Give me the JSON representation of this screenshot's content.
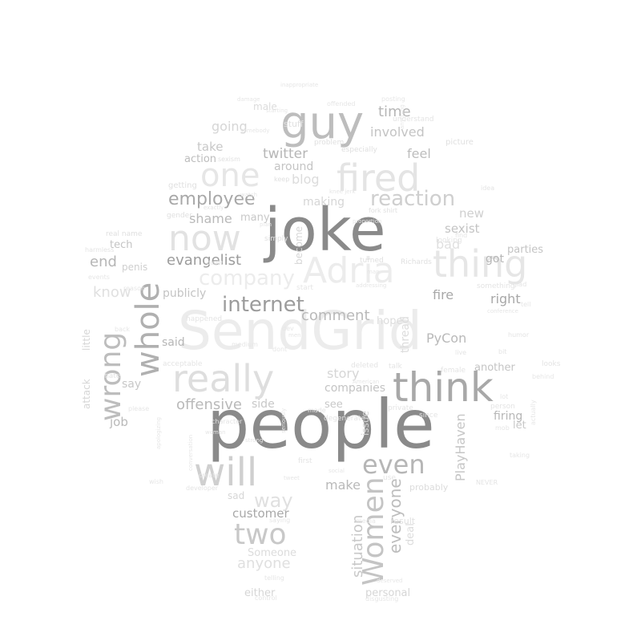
{
  "word_cloud": {
    "words": [
      {
        "text": "people",
        "shade": "#8a8a8a"
      },
      {
        "text": "joke",
        "shade": "#8a8a8a"
      },
      {
        "text": "SendGrid",
        "shade": "#ececec"
      },
      {
        "text": "think",
        "shade": "#a8a8a8"
      },
      {
        "text": "guy",
        "shade": "#bdbdbd"
      },
      {
        "text": "fired",
        "shade": "#e4e4e4"
      },
      {
        "text": "one",
        "shade": "#e6e6e6"
      },
      {
        "text": "Adria",
        "shade": "#ececec"
      },
      {
        "text": "thing",
        "shade": "#e6e6e6"
      },
      {
        "text": "really",
        "shade": "#dedede"
      },
      {
        "text": "will",
        "shade": "#cfcfcf"
      },
      {
        "text": "now",
        "shade": "#e2e2e2"
      },
      {
        "text": "Women",
        "shade": "#c4c4c4"
      },
      {
        "text": "whole",
        "shade": "#b0b0b0"
      },
      {
        "text": "wrong",
        "shade": "#bdbdbd"
      },
      {
        "text": "two",
        "shade": "#c8c8c8"
      },
      {
        "text": "even",
        "shade": "#b6b6b6"
      },
      {
        "text": "internet",
        "shade": "#9c9c9c"
      },
      {
        "text": "reaction",
        "shade": "#cfcfcf"
      },
      {
        "text": "employee",
        "shade": "#a8a8a8"
      },
      {
        "text": "company",
        "shade": "#ececec"
      },
      {
        "text": "way",
        "shade": "#e0e0e0"
      },
      {
        "text": "evangelist",
        "shade": "#9c9c9c"
      },
      {
        "text": "comment",
        "shade": "#b9b9b9"
      },
      {
        "text": "everyone",
        "shade": "#bdbdbd"
      },
      {
        "text": "situation",
        "shade": "#c8c8c8"
      },
      {
        "text": "PlayHaven",
        "shade": "#c6c6c6"
      },
      {
        "text": "PyCon",
        "shade": "#b9b9b9"
      },
      {
        "text": "offensive",
        "shade": "#b9b9b9"
      },
      {
        "text": "customer",
        "shade": "#a8a8a8"
      },
      {
        "text": "anyone",
        "shade": "#e0e0e0"
      },
      {
        "text": "time",
        "shade": "#b6b6b6"
      },
      {
        "text": "twitter",
        "shade": "#b6b6b6"
      },
      {
        "text": "involved",
        "shade": "#c4c4c4"
      },
      {
        "text": "going",
        "shade": "#d6d6d6"
      },
      {
        "text": "shame",
        "shade": "#b9b9b9"
      },
      {
        "text": "end",
        "shade": "#b6b6b6"
      },
      {
        "text": "know",
        "shade": "#e0e0e0"
      },
      {
        "text": "story",
        "shade": "#d6d6d6"
      },
      {
        "text": "job",
        "shade": "#b9b9b9"
      },
      {
        "text": "make",
        "shade": "#b9b9b9"
      },
      {
        "text": "fire",
        "shade": "#a8a8a8"
      },
      {
        "text": "right",
        "shade": "#a8a8a8"
      },
      {
        "text": "got",
        "shade": "#b6b6b6"
      },
      {
        "text": "firing",
        "shade": "#b6b6b6"
      },
      {
        "text": "parties",
        "shade": "#c4c4c4"
      },
      {
        "text": "feel",
        "shade": "#bdbdbd"
      },
      {
        "text": "take",
        "shade": "#c8c8c8"
      },
      {
        "text": "blog",
        "shade": "#dcdcdc"
      },
      {
        "text": "around",
        "shade": "#c4c4c4"
      },
      {
        "text": "action",
        "shade": "#bdbdbd"
      },
      {
        "text": "making",
        "shade": "#d6d6d6"
      },
      {
        "text": "new",
        "shade": "#cfcfcf"
      },
      {
        "text": "sexist",
        "shade": "#c4c4c4"
      },
      {
        "text": "bad",
        "shade": "#e0e0e0"
      },
      {
        "text": "publicly",
        "shade": "#c4c4c4"
      },
      {
        "text": "said",
        "shade": "#b6b6b6"
      },
      {
        "text": "say",
        "shade": "#c8c8c8"
      },
      {
        "text": "companies",
        "shade": "#c4c4c4"
      },
      {
        "text": "side",
        "shade": "#c8c8c8"
      },
      {
        "text": "another",
        "shade": "#c4c4c4"
      },
      {
        "text": "let",
        "shade": "#c8c8c8"
      },
      {
        "text": "many",
        "shade": "#c8c8c8"
      },
      {
        "text": "tech",
        "shade": "#c4c4c4"
      },
      {
        "text": "penis",
        "shade": "#cfcfcf"
      },
      {
        "text": "Someone",
        "shade": "#dcdcdc"
      },
      {
        "text": "either",
        "shade": "#d6d6d6"
      },
      {
        "text": "personal",
        "shade": "#d6d6d6"
      },
      {
        "text": "see",
        "shade": "#c8c8c8"
      },
      {
        "text": "hope",
        "shade": "#dcdcdc"
      },
      {
        "text": "thread",
        "shade": "#dcdcdc"
      },
      {
        "text": "deal",
        "shade": "#dcdcdc"
      },
      {
        "text": "attack",
        "shade": "#d6d6d6"
      },
      {
        "text": "little",
        "shade": "#d6d6d6"
      },
      {
        "text": "become",
        "shade": "#d6d6d6"
      },
      {
        "text": "issue",
        "shade": "#d6d6d6"
      },
      {
        "text": "sad",
        "shade": "#d6d6d6"
      },
      {
        "text": "probably",
        "shade": "#dcdcdc"
      },
      {
        "text": "result",
        "shade": "#e0e0e0"
      },
      {
        "text": "male",
        "shade": "#dcdcdc"
      },
      {
        "text": "stuff",
        "shade": "#e0e0e0"
      },
      {
        "text": "problem",
        "shade": "#e0e0e0"
      },
      {
        "text": "especially",
        "shade": "#e0e0e0"
      },
      {
        "text": "picture",
        "shade": "#e0e0e0"
      },
      {
        "text": "understand",
        "shade": "#e4e4e4"
      },
      {
        "text": "sexism",
        "shade": "#e0e0e0"
      },
      {
        "text": "getting",
        "shade": "#e0e0e0"
      },
      {
        "text": "gender",
        "shade": "#e0e0e0"
      },
      {
        "text": "exactly",
        "shade": "#e4e4e4"
      },
      {
        "text": "real name",
        "shade": "#e0e0e0"
      },
      {
        "text": "harmless",
        "shade": "#e4e4e4"
      },
      {
        "text": "simply",
        "shade": "#e0e0e0"
      },
      {
        "text": "keep",
        "shade": "#e0e0e0"
      },
      {
        "text": "fork shirt",
        "shade": "#e0e0e0"
      },
      {
        "text": "turned",
        "shade": "#e0e0e0"
      },
      {
        "text": "Richards",
        "shade": "#e0e0e0"
      },
      {
        "text": "looking",
        "shade": "#e4e4e4"
      },
      {
        "text": "find",
        "shade": "#e4e4e4"
      },
      {
        "text": "idea",
        "shade": "#e4e4e4"
      },
      {
        "text": "something",
        "shade": "#e4e4e4"
      },
      {
        "text": "glad",
        "shade": "#e4e4e4"
      },
      {
        "text": "tell",
        "shade": "#e6e6e6"
      },
      {
        "text": "humor",
        "shade": "#e4e4e4"
      },
      {
        "text": "live",
        "shade": "#e4e4e4"
      },
      {
        "text": "bit",
        "shade": "#e4e4e4"
      },
      {
        "text": "looks",
        "shade": "#e4e4e4"
      },
      {
        "text": "behind",
        "shade": "#e6e6e6"
      },
      {
        "text": "female",
        "shade": "#e4e4e4"
      },
      {
        "text": "talk",
        "shade": "#e4e4e4"
      },
      {
        "text": "deleted",
        "shade": "#e4e4e4"
      },
      {
        "text": "private",
        "shade": "#e4e4e4"
      },
      {
        "text": "since",
        "shade": "#e4e4e4"
      },
      {
        "text": "person",
        "shade": "#e4e4e4"
      },
      {
        "text": "made",
        "shade": "#e4e4e4"
      },
      {
        "text": "degenerate",
        "shade": "#e4e4e4"
      },
      {
        "text": "character",
        "shade": "#e4e4e4"
      },
      {
        "text": "strong",
        "shade": "#e6e6e6"
      },
      {
        "text": "conversation",
        "shade": "#e6e6e6"
      },
      {
        "text": "create",
        "shade": "#e4e4e4"
      },
      {
        "text": "developer",
        "shade": "#e4e4e4"
      },
      {
        "text": "first",
        "shade": "#e4e4e4"
      },
      {
        "text": "social",
        "shade": "#e6e6e6"
      },
      {
        "text": "use",
        "shade": "#e4e4e4"
      },
      {
        "text": "media",
        "shade": "#e6e6e6"
      },
      {
        "text": "acceptable",
        "shade": "#e4e4e4"
      },
      {
        "text": "happened",
        "shade": "#e4e4e4"
      },
      {
        "text": "medium",
        "shade": "#e6e6e6"
      },
      {
        "text": "dont",
        "shade": "#e6e6e6"
      },
      {
        "text": "dev",
        "shade": "#e6e6e6"
      },
      {
        "text": "start",
        "shade": "#e6e6e6"
      },
      {
        "text": "hate",
        "shade": "#e4e4e4"
      },
      {
        "text": "wish",
        "shade": "#e6e6e6"
      },
      {
        "text": "back",
        "shade": "#e6e6e6"
      },
      {
        "text": "events",
        "shade": "#e6e6e6"
      },
      {
        "text": "reason",
        "shade": "#e6e6e6"
      },
      {
        "text": "conference",
        "shade": "#e6e6e6"
      },
      {
        "text": "NEVER",
        "shade": "#e4e4e4"
      },
      {
        "text": "taking",
        "shade": "#e6e6e6"
      },
      {
        "text": "telling",
        "shade": "#e6e6e6"
      },
      {
        "text": "control",
        "shade": "#e6e6e6"
      },
      {
        "text": "disgusting",
        "shade": "#e6e6e6"
      },
      {
        "text": "deserved",
        "shade": "#e6e6e6"
      },
      {
        "text": "offended",
        "shade": "#e6e6e6"
      },
      {
        "text": "posting",
        "shade": "#e6e6e6"
      },
      {
        "text": "somebody",
        "shade": "#e6e6e6"
      },
      {
        "text": "damage",
        "shade": "#e6e6e6"
      },
      {
        "text": "knee jerk",
        "shade": "#e6e6e6"
      },
      {
        "text": "proportion",
        "shade": "#e6e6e6"
      },
      {
        "text": "watch",
        "shade": "#e6e6e6"
      },
      {
        "text": "actually",
        "shade": "#e6e6e6"
      },
      {
        "text": "American",
        "shade": "#e6e6e6"
      },
      {
        "text": "mob",
        "shade": "#e6e6e6"
      },
      {
        "text": "men",
        "shade": "#e6e6e6"
      },
      {
        "text": "lot",
        "shade": "#e6e6e6"
      },
      {
        "text": "saying",
        "shade": "#e6e6e6"
      },
      {
        "text": "woman",
        "shade": "#e6e6e6"
      },
      {
        "text": "doubt",
        "shade": "#e6e6e6"
      },
      {
        "text": "apologizing",
        "shade": "#e6e6e6"
      },
      {
        "text": "please",
        "shade": "#e6e6e6"
      },
      {
        "text": "seriously",
        "shade": "#e6e6e6"
      },
      {
        "text": "tweet",
        "shade": "#e6e6e6"
      },
      {
        "text": "man",
        "shade": "#e6e6e6"
      },
      {
        "text": "anything",
        "shade": "#e6e6e6"
      },
      {
        "text": "plan",
        "shade": "#e6e6e6"
      },
      {
        "text": "addressing",
        "shade": "#e6e6e6"
      },
      {
        "text": "starting",
        "shade": "#e6e6e6"
      },
      {
        "text": "inappropriate",
        "shade": "#e6e6e6"
      }
    ]
  }
}
